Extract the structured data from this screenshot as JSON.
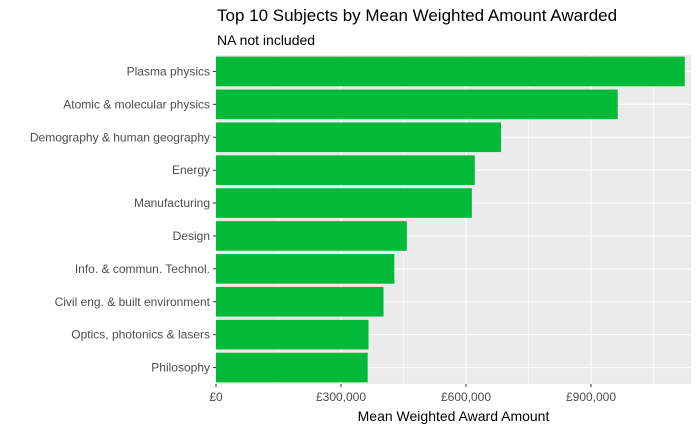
{
  "chart_data": {
    "type": "bar",
    "orientation": "horizontal",
    "title": "Top 10 Subjects by Mean Weighted Amount Awarded",
    "subtitle": "NA not included",
    "xlabel": "Mean Weighted Award Amount",
    "ylabel": "",
    "xlim": [
      0,
      1140000
    ],
    "x_ticks": [
      0,
      300000,
      600000,
      900000
    ],
    "x_tick_labels": [
      "£0",
      "£300,000",
      "£600,000",
      "£900,000"
    ],
    "categories": [
      "Plasma physics",
      "Atomic & molecular physics",
      "Demography & human geography",
      "Energy",
      "Manufacturing",
      "Design",
      "Info. & commun. Technol.",
      "Civil eng. & built environment",
      "Optics, photonics & lasers",
      "Philosophy"
    ],
    "values": [
      1125000,
      964000,
      684000,
      621000,
      614000,
      458000,
      428000,
      402000,
      366000,
      364000
    ],
    "grid": true,
    "legend": "none",
    "colors": {
      "bar": "#00BA38",
      "panel": "#EBEBEB",
      "grid": "#FFFFFF"
    }
  }
}
